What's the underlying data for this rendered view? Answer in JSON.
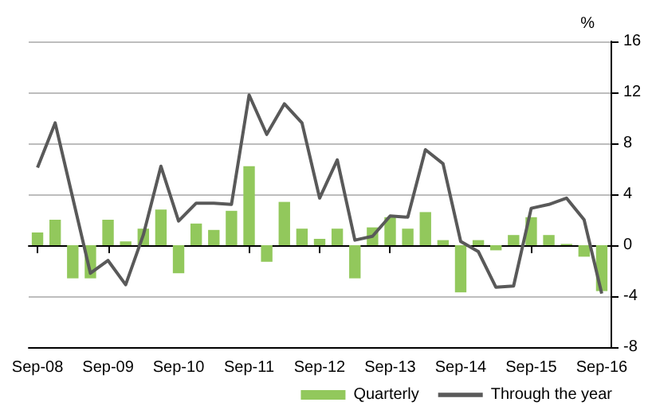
{
  "chart_data": {
    "type": "bar",
    "ylabel": "%",
    "categories": [
      "Sep-08",
      null,
      null,
      null,
      "Sep-09",
      null,
      null,
      null,
      "Sep-10",
      null,
      null,
      null,
      "Sep-11",
      null,
      null,
      null,
      "Sep-12",
      null,
      null,
      null,
      "Sep-13",
      null,
      null,
      null,
      "Sep-14",
      null,
      null,
      null,
      "Sep-15",
      null,
      null,
      null,
      "Sep-16"
    ],
    "series": [
      {
        "name": "Quarterly",
        "color": "#92c85c",
        "values": [
          1.0,
          2.0,
          -2.6,
          -2.6,
          2.0,
          0.3,
          1.3,
          2.8,
          -2.2,
          1.7,
          1.2,
          2.7,
          6.2,
          -1.3,
          3.4,
          1.3,
          0.5,
          1.3,
          -2.6,
          1.4,
          2.2,
          1.3,
          2.6,
          0.4,
          -3.7,
          0.4,
          -0.4,
          0.8,
          2.2,
          0.8,
          0.1,
          -0.9,
          -3.6
        ]
      },
      {
        "name": "Through the year",
        "type": "line",
        "color": "#595959",
        "values": [
          6.1,
          9.6,
          3.7,
          -2.2,
          -1.2,
          -3.1,
          0.8,
          6.2,
          1.9,
          3.3,
          3.3,
          3.2,
          11.8,
          8.7,
          11.1,
          9.6,
          3.7,
          6.7,
          0.4,
          0.7,
          2.3,
          2.2,
          7.5,
          6.4,
          0.3,
          -0.5,
          -3.3,
          -3.2,
          2.9,
          3.2,
          3.7,
          2.0,
          -3.8
        ]
      }
    ],
    "ylim": [
      -8,
      16
    ],
    "yticks": [
      -8,
      -4,
      0,
      4,
      8,
      12,
      16
    ],
    "grid": "y",
    "legend": "bottom right",
    "marker": "none",
    "line_style": "solid"
  }
}
